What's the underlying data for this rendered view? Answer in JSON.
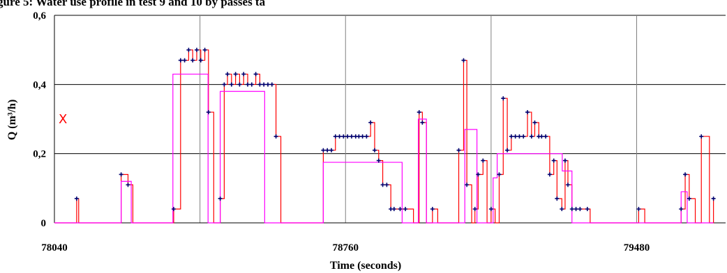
{
  "chart_data": {
    "type": "line",
    "title": "gure 5: Water use profile in test 9 and 10 by passes ta",
    "xlabel": "Time (seconds)",
    "ylabel": "Q (m³/h)",
    "xlim": [
      78040,
      79700
    ],
    "ylim": [
      0,
      0.6
    ],
    "x_tick_labels": [
      {
        "value": 78040,
        "label": "78040"
      },
      {
        "value": 78760,
        "label": "78760"
      },
      {
        "value": 79480,
        "label": "79480"
      }
    ],
    "y_tick_labels": [
      {
        "value": 0,
        "label": "0"
      },
      {
        "value": 0.2,
        "label": "0,2"
      },
      {
        "value": 0.4,
        "label": "0,4"
      },
      {
        "value": 0.6,
        "label": "0,6"
      }
    ],
    "horizontal_grid": [
      0.2,
      0.4,
      0.6
    ],
    "vertical_grid": [
      78400,
      78760,
      79120,
      79480
    ],
    "annotation": {
      "symbol": "X",
      "color": "#ff0000",
      "y": 0.3
    },
    "series": [
      {
        "style": "step-with-markers",
        "color": "#ff0000",
        "marker_color": "#00006e",
        "x": [
          78040,
          78095,
          78100,
          78205,
          78222,
          78234,
          78335,
          78352,
          78362,
          78372,
          78382,
          78392,
          78402,
          78412,
          78421,
          78434,
          78450,
          78460,
          78468,
          78478,
          78488,
          78498,
          78508,
          78518,
          78528,
          78538,
          78548,
          78558,
          78568,
          78578,
          78588,
          78600,
          78705,
          78715,
          78725,
          78735,
          78745,
          78755,
          78765,
          78775,
          78785,
          78793,
          78802,
          78812,
          78822,
          78832,
          78842,
          78852,
          78862,
          78872,
          78880,
          78895,
          78908,
          78928,
          78942,
          78950,
          78960,
          78975,
          78988,
          79040,
          79052,
          79060,
          79072,
          79080,
          79088,
          79100,
          79110,
          79120,
          79130,
          79140,
          79150,
          79160,
          79170,
          79180,
          79190,
          79200,
          79210,
          79220,
          79228,
          79238,
          79245,
          79255,
          79265,
          79275,
          79283,
          79295,
          79303,
          79310,
          79320,
          79330,
          79340,
          79358,
          79365,
          79485,
          79500,
          79590,
          79600,
          79610,
          79625,
          79640,
          79660,
          79670
        ],
        "y": [
          0,
          0.07,
          0,
          0.14,
          0.11,
          0,
          0.04,
          0.47,
          0.47,
          0.5,
          0.47,
          0.5,
          0.47,
          0.5,
          0.32,
          0,
          0.07,
          0.4,
          0.43,
          0.4,
          0.43,
          0.4,
          0.43,
          0.4,
          0.4,
          0.43,
          0.4,
          0.4,
          0.4,
          0.4,
          0.25,
          0,
          0.21,
          0.21,
          0.21,
          0.25,
          0.25,
          0.25,
          0.25,
          0.25,
          0.25,
          0.25,
          0.25,
          0.25,
          0.29,
          0.21,
          0.18,
          0.11,
          0.11,
          0.04,
          0.04,
          0.04,
          0.04,
          0,
          0.32,
          0.29,
          0,
          0.04,
          0,
          0.21,
          0.47,
          0.11,
          0,
          0.04,
          0.14,
          0.18,
          0,
          0.04,
          0,
          0.14,
          0.36,
          0.21,
          0.25,
          0.25,
          0.25,
          0.25,
          0.32,
          0.25,
          0.29,
          0.25,
          0.25,
          0.25,
          0.14,
          0.18,
          0.07,
          0.04,
          0.18,
          0.11,
          0.04,
          0.04,
          0.04,
          0.04,
          0,
          0.04,
          0,
          0.04,
          0.14,
          0.07,
          0,
          0.25,
          0,
          0.07
        ]
      },
      {
        "style": "step",
        "color": "#ff00ff",
        "x": [
          78040,
          78205,
          78230,
          78333,
          78420,
          78450,
          78560,
          78705,
          78900,
          78940,
          78960,
          79055,
          79085,
          79125,
          79135,
          79236,
          79296,
          79320,
          79590,
          79605,
          79670
        ],
        "y": [
          0,
          0.12,
          0,
          0.43,
          0,
          0.38,
          0,
          0.175,
          0,
          0.3,
          0,
          0.27,
          0,
          0.13,
          0.2,
          0.2,
          0.15,
          0,
          0.09,
          0,
          0
        ]
      }
    ]
  }
}
